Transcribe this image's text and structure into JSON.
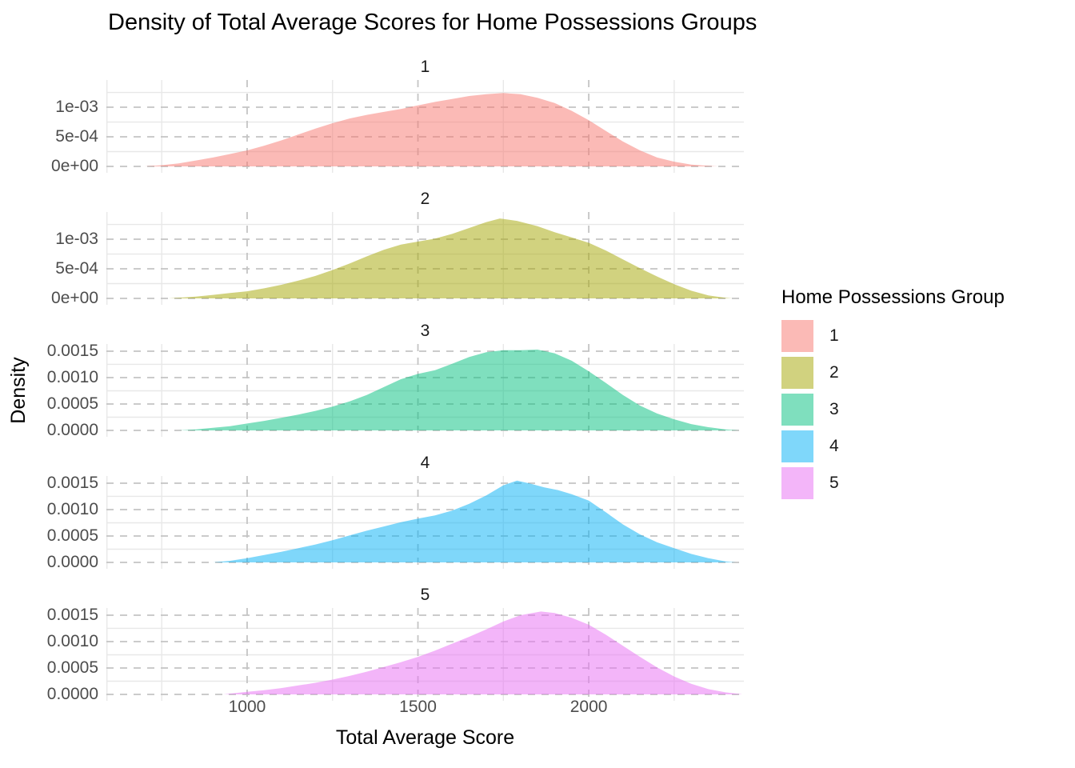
{
  "title": "Density of Total Average Scores for Home Possessions Groups",
  "axes": {
    "x_label": "Total Average Score",
    "y_label": "Density"
  },
  "legend": {
    "title": "Home Possessions Group",
    "items": [
      {
        "label": "1",
        "color": "#F8766D"
      },
      {
        "label": "2",
        "color": "#A3A500"
      },
      {
        "label": "3",
        "color": "#00BF7D"
      },
      {
        "label": "4",
        "color": "#00B0F6"
      },
      {
        "label": "5",
        "color": "#E76BF3"
      }
    ],
    "fill_alpha": 0.5
  },
  "chart_data": {
    "type": "area",
    "subtype": "faceted-density",
    "title": "Density of Total Average Scores for Home Possessions Groups",
    "xlabel": "Total Average Score",
    "ylabel": "Density",
    "xlim": [
      588,
      2454
    ],
    "x_ticks": [
      {
        "label": "1000",
        "value": 1000
      },
      {
        "label": "1500",
        "value": 1500
      },
      {
        "label": "2000",
        "value": 2000
      }
    ],
    "x_minor_gridlines": [
      750,
      1250,
      1750,
      2250
    ],
    "grid": {
      "major_color": "#C4C4C4",
      "major_dashed": true,
      "minor_color": "#E8E8E8",
      "minor_dashed": false
    },
    "facets": [
      {
        "label": "1",
        "color": "#F8766D",
        "ylim": [
          0,
          0.00146
        ],
        "y_ticks": [
          {
            "label": "1e-03",
            "value": 0.001
          },
          {
            "label": "5e-04",
            "value": 0.0005
          },
          {
            "label": "0e+00",
            "value": 0
          }
        ],
        "y_minor": [
          0.00025,
          0.00075,
          0.00125
        ],
        "peak": {
          "x": 1750,
          "density": 0.00124
        },
        "points": [
          [
            700,
            0
          ],
          [
            750,
            2e-05
          ],
          [
            800,
            5e-05
          ],
          [
            850,
            0.0001
          ],
          [
            900,
            0.00015
          ],
          [
            950,
            0.00021
          ],
          [
            1000,
            0.00027
          ],
          [
            1050,
            0.00035
          ],
          [
            1100,
            0.00044
          ],
          [
            1150,
            0.00054
          ],
          [
            1200,
            0.00064
          ],
          [
            1250,
            0.00073
          ],
          [
            1300,
            0.00081
          ],
          [
            1350,
            0.00087
          ],
          [
            1400,
            0.00092
          ],
          [
            1450,
            0.00097
          ],
          [
            1500,
            0.00103
          ],
          [
            1550,
            0.00109
          ],
          [
            1600,
            0.00114
          ],
          [
            1650,
            0.00119
          ],
          [
            1700,
            0.00122
          ],
          [
            1750,
            0.00124
          ],
          [
            1800,
            0.00122
          ],
          [
            1850,
            0.00116
          ],
          [
            1900,
            0.00107
          ],
          [
            1950,
            0.00094
          ],
          [
            2000,
            0.00078
          ],
          [
            2050,
            0.0006
          ],
          [
            2100,
            0.00042
          ],
          [
            2150,
            0.00027
          ],
          [
            2200,
            0.00015
          ],
          [
            2250,
            8e-05
          ],
          [
            2300,
            3e-05
          ],
          [
            2350,
            1e-05
          ],
          [
            2380,
            0
          ]
        ]
      },
      {
        "label": "2",
        "color": "#A3A500",
        "ylim": [
          0,
          0.00146
        ],
        "y_ticks": [
          {
            "label": "1e-03",
            "value": 0.001
          },
          {
            "label": "5e-04",
            "value": 0.0005
          },
          {
            "label": "0e+00",
            "value": 0
          }
        ],
        "y_minor": [
          0.00025,
          0.00075,
          0.00125
        ],
        "peak": {
          "x": 1740,
          "density": 0.00135
        },
        "points": [
          [
            770,
            0
          ],
          [
            850,
            3e-05
          ],
          [
            900,
            6e-05
          ],
          [
            950,
            9e-05
          ],
          [
            1000,
            0.00012
          ],
          [
            1050,
            0.00017
          ],
          [
            1100,
            0.00023
          ],
          [
            1150,
            0.0003
          ],
          [
            1200,
            0.00038
          ],
          [
            1250,
            0.00048
          ],
          [
            1300,
            0.00059
          ],
          [
            1350,
            0.00071
          ],
          [
            1400,
            0.00082
          ],
          [
            1450,
            0.00091
          ],
          [
            1500,
            0.00096
          ],
          [
            1550,
            0.00101
          ],
          [
            1600,
            0.00109
          ],
          [
            1650,
            0.00119
          ],
          [
            1700,
            0.00129
          ],
          [
            1740,
            0.00135
          ],
          [
            1790,
            0.00131
          ],
          [
            1850,
            0.00122
          ],
          [
            1900,
            0.00112
          ],
          [
            1950,
            0.00103
          ],
          [
            2000,
            0.00094
          ],
          [
            2050,
            0.00081
          ],
          [
            2100,
            0.00066
          ],
          [
            2150,
            0.00051
          ],
          [
            2200,
            0.00037
          ],
          [
            2250,
            0.00024
          ],
          [
            2300,
            0.00013
          ],
          [
            2350,
            5e-05
          ],
          [
            2400,
            1e-05
          ],
          [
            2420,
            0
          ]
        ]
      },
      {
        "label": "3",
        "color": "#00BF7D",
        "ylim": [
          0,
          0.001636
        ],
        "y_ticks": [
          {
            "label": "0.0015",
            "value": 0.0015
          },
          {
            "label": "0.0010",
            "value": 0.001
          },
          {
            "label": "0.0005",
            "value": 0.0005
          },
          {
            "label": "0.0000",
            "value": 0
          }
        ],
        "y_minor": [
          0.00025,
          0.00075,
          0.00125
        ],
        "peak": {
          "x": 1850,
          "density": 0.00153
        },
        "points": [
          [
            800,
            0
          ],
          [
            850,
            2e-05
          ],
          [
            900,
            5e-05
          ],
          [
            950,
            8e-05
          ],
          [
            1000,
            0.00013
          ],
          [
            1050,
            0.00018
          ],
          [
            1100,
            0.00024
          ],
          [
            1150,
            0.0003
          ],
          [
            1200,
            0.00037
          ],
          [
            1250,
            0.00045
          ],
          [
            1300,
            0.00055
          ],
          [
            1350,
            0.00067
          ],
          [
            1400,
            0.00082
          ],
          [
            1450,
            0.00097
          ],
          [
            1500,
            0.00107
          ],
          [
            1550,
            0.00114
          ],
          [
            1600,
            0.00126
          ],
          [
            1650,
            0.00139
          ],
          [
            1700,
            0.00148
          ],
          [
            1750,
            0.00152
          ],
          [
            1800,
            0.00152
          ],
          [
            1850,
            0.00153
          ],
          [
            1900,
            0.00146
          ],
          [
            1950,
            0.00132
          ],
          [
            2000,
            0.00112
          ],
          [
            2050,
            0.0009
          ],
          [
            2100,
            0.00067
          ],
          [
            2150,
            0.00047
          ],
          [
            2200,
            0.00032
          ],
          [
            2250,
            0.00021
          ],
          [
            2300,
            0.00012
          ],
          [
            2350,
            6e-05
          ],
          [
            2400,
            2e-05
          ],
          [
            2440,
            0
          ]
        ]
      },
      {
        "label": "4",
        "color": "#00B0F6",
        "ylim": [
          0,
          0.001636
        ],
        "y_ticks": [
          {
            "label": "0.0015",
            "value": 0.0015
          },
          {
            "label": "0.0010",
            "value": 0.001
          },
          {
            "label": "0.0005",
            "value": 0.0005
          },
          {
            "label": "0.0000",
            "value": 0
          }
        ],
        "y_minor": [
          0.00025,
          0.00075,
          0.00125
        ],
        "peak": {
          "x": 1790,
          "density": 0.00155
        },
        "points": [
          [
            900,
            0
          ],
          [
            950,
            3e-05
          ],
          [
            1000,
            8e-05
          ],
          [
            1050,
            0.00014
          ],
          [
            1100,
            0.0002
          ],
          [
            1150,
            0.00027
          ],
          [
            1200,
            0.00034
          ],
          [
            1250,
            0.00042
          ],
          [
            1300,
            0.00051
          ],
          [
            1350,
            0.0006
          ],
          [
            1400,
            0.00068
          ],
          [
            1450,
            0.00076
          ],
          [
            1500,
            0.00083
          ],
          [
            1550,
            0.00089
          ],
          [
            1600,
            0.00098
          ],
          [
            1650,
            0.00111
          ],
          [
            1700,
            0.00127
          ],
          [
            1750,
            0.00146
          ],
          [
            1790,
            0.00155
          ],
          [
            1830,
            0.00149
          ],
          [
            1870,
            0.00142
          ],
          [
            1910,
            0.00137
          ],
          [
            1950,
            0.00129
          ],
          [
            2000,
            0.00117
          ],
          [
            2050,
            0.00095
          ],
          [
            2100,
            0.00072
          ],
          [
            2150,
            0.00053
          ],
          [
            2200,
            0.00038
          ],
          [
            2250,
            0.00027
          ],
          [
            2300,
            0.00016
          ],
          [
            2350,
            8e-05
          ],
          [
            2400,
            2e-05
          ],
          [
            2430,
            0
          ]
        ]
      },
      {
        "label": "5",
        "color": "#E76BF3",
        "ylim": [
          0,
          0.001636
        ],
        "y_ticks": [
          {
            "label": "0.0015",
            "value": 0.0015
          },
          {
            "label": "0.0010",
            "value": 0.001
          },
          {
            "label": "0.0005",
            "value": 0.0005
          },
          {
            "label": "0.0000",
            "value": 0
          }
        ],
        "y_minor": [
          0.00025,
          0.00075,
          0.00125
        ],
        "peak": {
          "x": 1860,
          "density": 0.00157
        },
        "points": [
          [
            930,
            0
          ],
          [
            1000,
            5e-05
          ],
          [
            1050,
            8e-05
          ],
          [
            1100,
            0.00012
          ],
          [
            1150,
            0.00017
          ],
          [
            1200,
            0.00022
          ],
          [
            1250,
            0.00028
          ],
          [
            1300,
            0.00035
          ],
          [
            1350,
            0.00043
          ],
          [
            1400,
            0.00052
          ],
          [
            1450,
            0.00061
          ],
          [
            1500,
            0.00071
          ],
          [
            1550,
            0.00083
          ],
          [
            1600,
            0.00096
          ],
          [
            1650,
            0.00109
          ],
          [
            1700,
            0.00123
          ],
          [
            1750,
            0.00138
          ],
          [
            1800,
            0.0015
          ],
          [
            1860,
            0.00157
          ],
          [
            1900,
            0.00154
          ],
          [
            1950,
            0.00145
          ],
          [
            2000,
            0.00132
          ],
          [
            2050,
            0.00113
          ],
          [
            2100,
            0.00092
          ],
          [
            2150,
            0.00071
          ],
          [
            2200,
            0.00051
          ],
          [
            2250,
            0.00034
          ],
          [
            2300,
            0.0002
          ],
          [
            2350,
            0.0001
          ],
          [
            2400,
            4e-05
          ],
          [
            2450,
            0
          ]
        ]
      }
    ]
  }
}
